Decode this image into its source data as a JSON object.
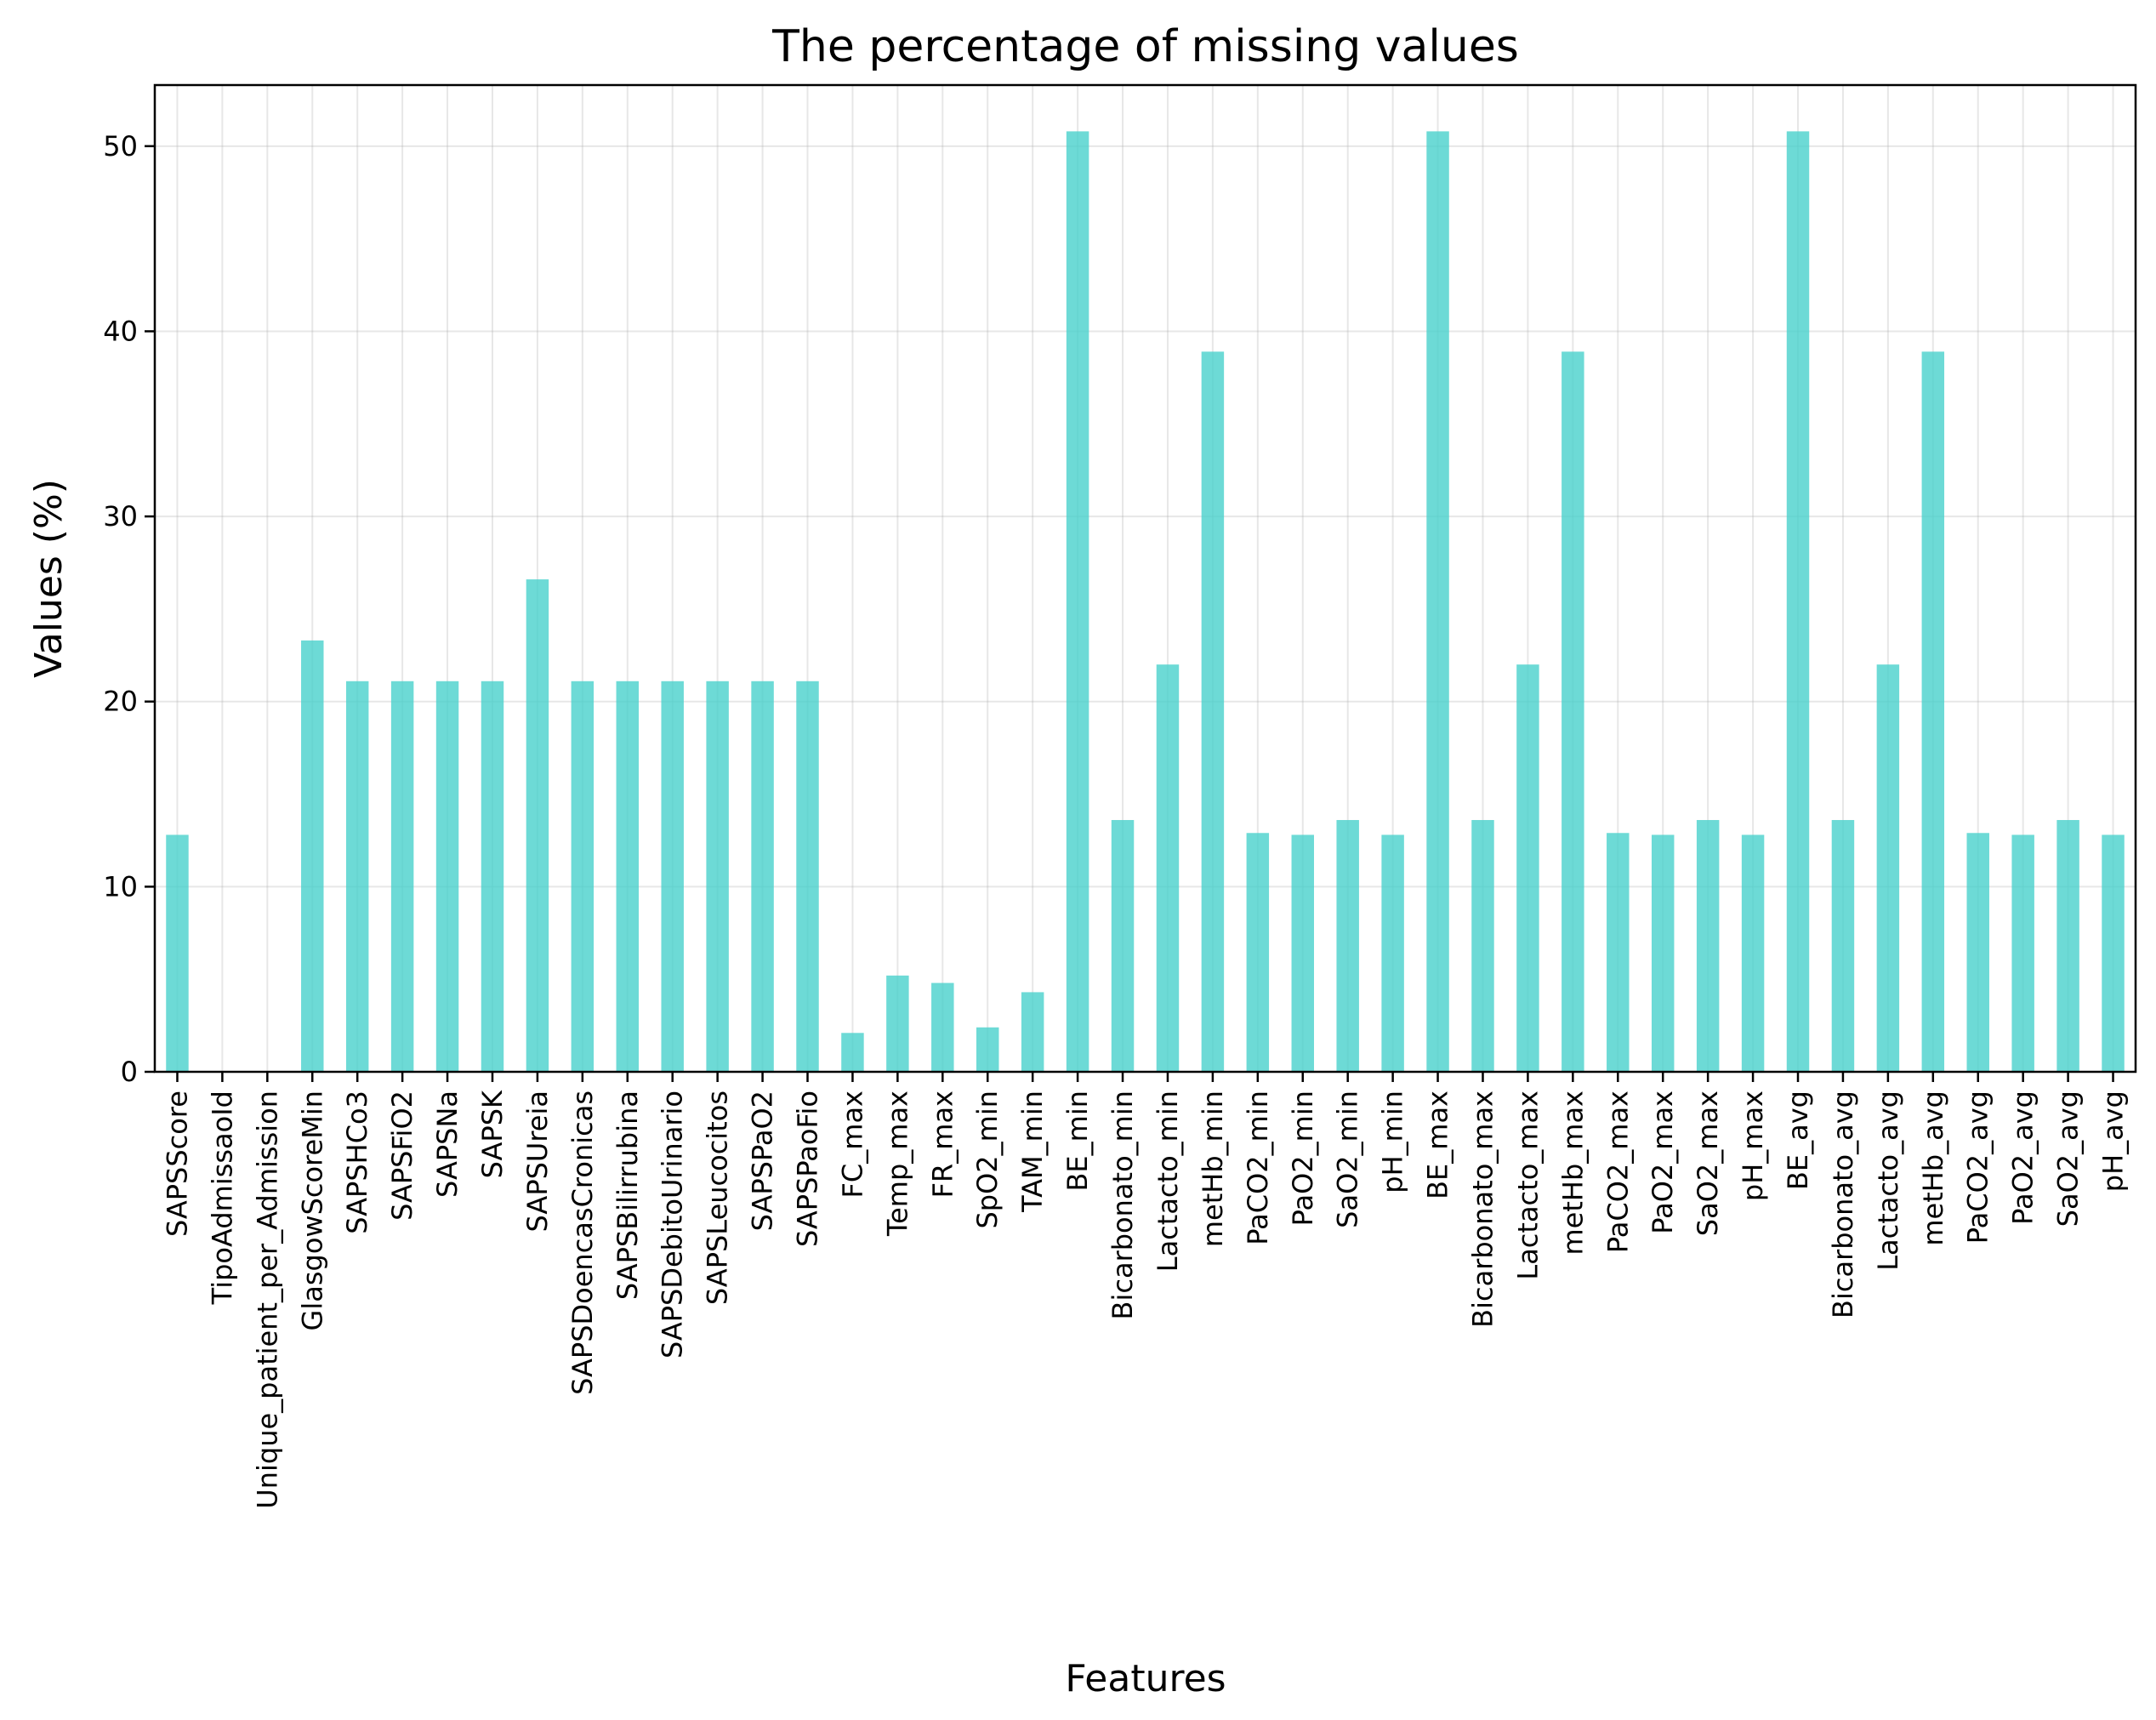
{
  "chart_data": {
    "type": "bar",
    "title": "The percentage of missing values",
    "xlabel": "Features",
    "ylabel": "Values (%)",
    "ylim": [
      0,
      53.3
    ],
    "yticks": [
      0,
      10,
      20,
      30,
      40,
      50
    ],
    "grid": true,
    "color": "#48d1cc",
    "categories": [
      "SAPSScore",
      "TipoAdmissaoId",
      "Unique_patient_per_Admission",
      "GlasgowScoreMin",
      "SAPSHCo3",
      "SAPSFiO2",
      "SAPSNa",
      "SAPSK",
      "SAPSUreia",
      "SAPSDoencasCronicas",
      "SAPSBilirrubina",
      "SAPSDebitoUrinario",
      "SAPSLeucocitos",
      "SAPSPaO2",
      "SAPSPaoFio",
      "FC_max",
      "Temp_max",
      "FR_max",
      "SpO2_min",
      "TAM_min",
      "BE_min",
      "Bicarbonato_min",
      "Lactacto_min",
      "metHb_min",
      "PaCO2_min",
      "PaO2_min",
      "SaO2_min",
      "pH_min",
      "BE_max",
      "Bicarbonato_max",
      "Lactacto_max",
      "metHb_max",
      "PaCO2_max",
      "PaO2_max",
      "SaO2_max",
      "pH_max",
      "BE_avg",
      "Bicarbonato_avg",
      "Lactacto_avg",
      "metHb_avg",
      "PaCO2_avg",
      "PaO2_avg",
      "SaO2_avg",
      "pH_avg"
    ],
    "values": [
      12.8,
      0,
      0,
      23.3,
      21.1,
      21.1,
      21.1,
      21.1,
      26.6,
      21.1,
      21.1,
      21.1,
      21.1,
      21.1,
      21.1,
      2.1,
      5.2,
      4.8,
      2.4,
      4.3,
      50.8,
      13.6,
      22.0,
      38.9,
      12.9,
      12.8,
      13.6,
      12.8,
      50.8,
      13.6,
      22.0,
      38.9,
      12.9,
      12.8,
      13.6,
      12.8,
      50.8,
      13.6,
      22.0,
      38.9,
      12.9,
      12.8,
      13.6,
      12.8
    ]
  }
}
